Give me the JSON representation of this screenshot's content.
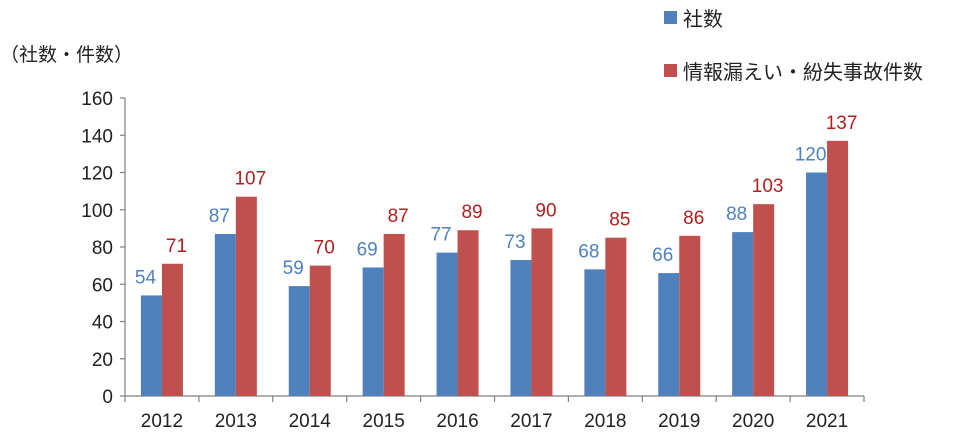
{
  "chart_data": {
    "type": "bar",
    "unit_label": "（社数・件数）",
    "categories": [
      "2012",
      "2013",
      "2014",
      "2015",
      "2016",
      "2017",
      "2018",
      "2019",
      "2020",
      "2021"
    ],
    "series": [
      {
        "name": "社数",
        "color": "#4f81bd",
        "label_color": "#4f81bd",
        "values": [
          54,
          87,
          59,
          69,
          77,
          73,
          68,
          66,
          88,
          120
        ]
      },
      {
        "name": "情報漏えい・紛失事故件数",
        "color": "#c0504d",
        "label_color": "#b02020",
        "values": [
          71,
          107,
          70,
          87,
          89,
          90,
          85,
          86,
          103,
          137
        ]
      }
    ],
    "ylim": [
      0,
      160
    ],
    "yticks": [
      0,
      20,
      40,
      60,
      80,
      100,
      120,
      140,
      160
    ],
    "grid": false,
    "legend_position": "top-right"
  }
}
